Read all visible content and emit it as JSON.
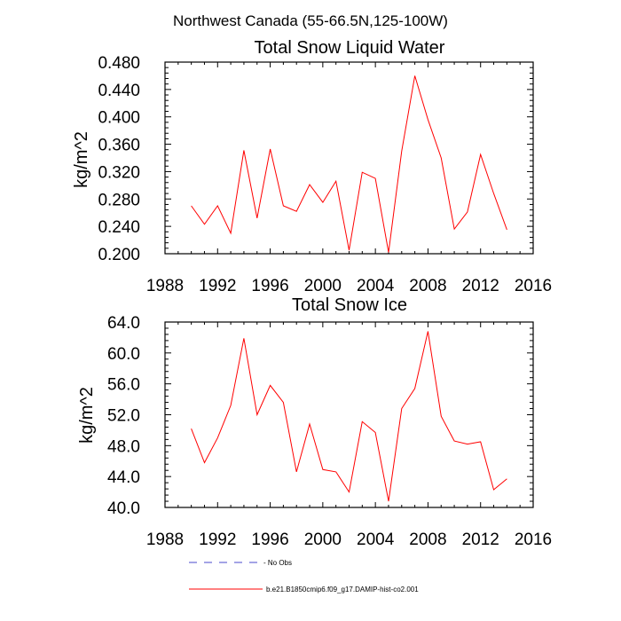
{
  "figure": {
    "main_title": "Northwest Canada (55-66.5N,125-100W)",
    "legend": [
      {
        "label": "- No Obs",
        "color": "#4a4acc",
        "dash": true
      },
      {
        "label": "b.e21.B1850cmip6.f09_g17.DAMIP-hist-co2.001",
        "color": "#ff0000",
        "dash": false
      }
    ]
  },
  "chart_data": [
    {
      "type": "line",
      "title": "Total Snow Liquid Water",
      "xlabel": "",
      "ylabel": "kg/m^2",
      "xlim": [
        1988,
        2016
      ],
      "ylim": [
        0.2,
        0.48
      ],
      "xticks": [
        1988,
        1992,
        1996,
        2000,
        2004,
        2008,
        2012,
        2016
      ],
      "xtick_labels": [
        "1988",
        "1992",
        "1996",
        "2000",
        "2004",
        "2008",
        "2012",
        "2016"
      ],
      "yticks": [
        0.2,
        0.24,
        0.28,
        0.32,
        0.36,
        0.4,
        0.44,
        0.48
      ],
      "ytick_labels": [
        "0.200",
        "0.240",
        "0.280",
        "0.320",
        "0.360",
        "0.400",
        "0.440",
        "0.480"
      ],
      "grid": false,
      "series": [
        {
          "color": "#ff0000",
          "x": [
            1990,
            1991,
            1992,
            1993,
            1994,
            1995,
            1996,
            1997,
            1998,
            1999,
            2000,
            2001,
            2002,
            2003,
            2004,
            2005,
            2006,
            2007,
            2008,
            2009,
            2010,
            2011,
            2012,
            2013,
            2014
          ],
          "y": [
            0.27,
            0.243,
            0.27,
            0.23,
            0.351,
            0.252,
            0.353,
            0.27,
            0.262,
            0.301,
            0.275,
            0.306,
            0.205,
            0.319,
            0.31,
            0.202,
            0.35,
            0.46,
            0.396,
            0.34,
            0.236,
            0.261,
            0.345,
            0.288,
            0.235
          ]
        }
      ]
    },
    {
      "type": "line",
      "title": "Total Snow Ice",
      "xlabel": "",
      "ylabel": "kg/m^2",
      "xlim": [
        1988,
        2016
      ],
      "ylim": [
        40,
        64
      ],
      "xticks": [
        1988,
        1992,
        1996,
        2000,
        2004,
        2008,
        2012,
        2016
      ],
      "xtick_labels": [
        "1988",
        "1992",
        "1996",
        "2000",
        "2004",
        "2008",
        "2012",
        "2016"
      ],
      "yticks": [
        40,
        44,
        48,
        52,
        56,
        60,
        64
      ],
      "ytick_labels": [
        "40.0",
        "44.0",
        "48.0",
        "52.0",
        "56.0",
        "60.0",
        "64.0"
      ],
      "grid": false,
      "series": [
        {
          "color": "#ff0000",
          "x": [
            1990,
            1991,
            1992,
            1993,
            1994,
            1995,
            1996,
            1997,
            1998,
            1999,
            2000,
            2001,
            2002,
            2003,
            2004,
            2005,
            2006,
            2007,
            2008,
            2009,
            2010,
            2011,
            2012,
            2013,
            2014
          ],
          "y": [
            50.2,
            45.8,
            49.0,
            53.2,
            61.9,
            52.0,
            55.8,
            53.6,
            44.6,
            50.8,
            44.9,
            44.6,
            42.0,
            51.1,
            49.7,
            40.8,
            52.8,
            55.4,
            62.8,
            51.8,
            48.6,
            48.2,
            48.5,
            42.3,
            43.7
          ]
        }
      ]
    }
  ]
}
